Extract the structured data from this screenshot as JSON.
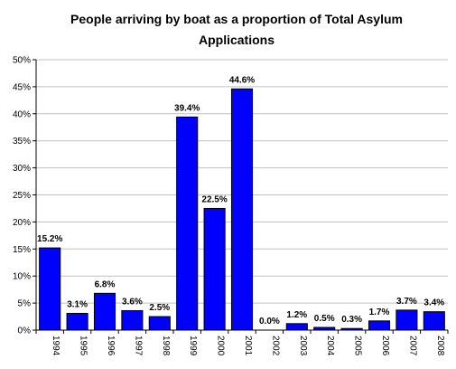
{
  "chart_data": {
    "type": "bar",
    "title_lines": [
      "People arriving by boat as a proportion of Total Asylum",
      "Applications"
    ],
    "categories": [
      "1994",
      "1995",
      "1996",
      "1997",
      "1998",
      "1999",
      "2000",
      "2001",
      "2002",
      "2003",
      "2004",
      "2005",
      "2006",
      "2007",
      "2008"
    ],
    "values": [
      15.2,
      3.1,
      6.8,
      3.6,
      2.5,
      39.4,
      22.5,
      44.6,
      0.0,
      1.2,
      0.5,
      0.3,
      1.7,
      3.7,
      3.4
    ],
    "data_labels": [
      "15.2%",
      "3.1%",
      "6.8%",
      "3.6%",
      "2.5%",
      "39.4%",
      "22.5%",
      "44.6%",
      "0.0%",
      "1.2%",
      "0.5%",
      "0.3%",
      "1.7%",
      "3.7%",
      "3.4%"
    ],
    "y_ticks": [
      0,
      5,
      10,
      15,
      20,
      25,
      30,
      35,
      40,
      45,
      50
    ],
    "y_tick_labels": [
      "0%",
      "5%",
      "10%",
      "15%",
      "20%",
      "25%",
      "30%",
      "35%",
      "40%",
      "45%",
      "50%"
    ],
    "ylim": [
      0,
      50
    ],
    "grid": true,
    "bar_color": "#0000ff",
    "bar_edge_color": "#000000",
    "grid_color": "#c0c0c0"
  }
}
